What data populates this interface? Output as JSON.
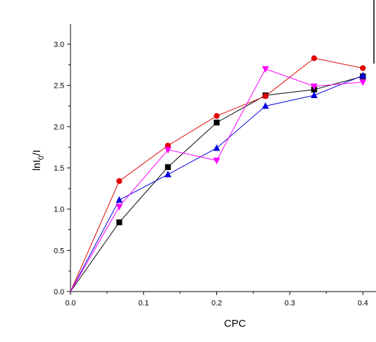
{
  "chart_data": {
    "type": "line",
    "xlabel": "CPC",
    "ylabel": "lnI₀/I",
    "ylabel_parts": {
      "base": "lnI",
      "sub": "0",
      "tail": "/I"
    },
    "xlim": [
      0,
      0.42
    ],
    "ylim": [
      0,
      3.25
    ],
    "x_ticks": [
      "0.0",
      "0.1",
      "0.2",
      "0.3",
      "0.4"
    ],
    "y_ticks": [
      "0.0",
      "0.5",
      "1.0",
      "1.5",
      "2.0",
      "2.5",
      "3.0"
    ],
    "grid": false,
    "legend": "none",
    "x": [
      0,
      0.0667,
      0.1333,
      0.2,
      0.2667,
      0.3333,
      0.4
    ],
    "series": [
      {
        "color": "#000000",
        "marker": "square",
        "values": [
          0,
          0.84,
          1.51,
          2.05,
          2.38,
          2.45,
          2.61
        ]
      },
      {
        "color": "#e00000",
        "marker": "circle",
        "values": [
          0,
          1.34,
          1.77,
          2.13,
          2.37,
          2.83,
          2.71
        ]
      },
      {
        "color": "#0000dd",
        "marker": "triangle-up",
        "values": [
          0,
          1.11,
          1.42,
          1.74,
          2.25,
          2.38,
          2.62
        ]
      },
      {
        "color": "#ff00ff",
        "marker": "triangle-down",
        "values": [
          0,
          1.03,
          1.72,
          1.59,
          2.7,
          2.49,
          2.54
        ]
      }
    ]
  }
}
